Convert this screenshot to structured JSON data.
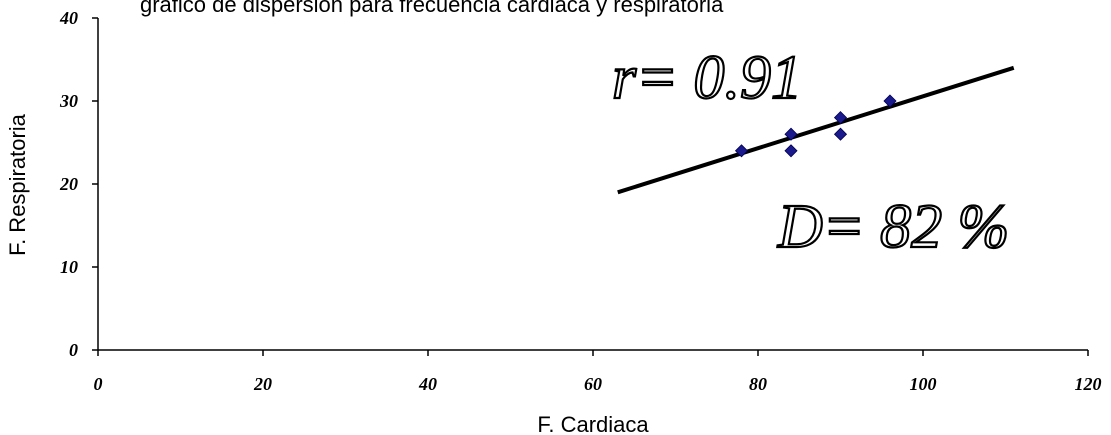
{
  "chart_data": {
    "type": "scatter",
    "title": "grafico de dispersion para frecuencia cardiaca y respiratoria",
    "xlabel": "F. Cardiaca",
    "ylabel": "F. Respiratoria",
    "xlim": [
      0,
      120
    ],
    "ylim": [
      0,
      40
    ],
    "xticks": [
      "0",
      "20",
      "40",
      "60",
      "80",
      "100",
      "120"
    ],
    "yticks": [
      "0",
      "10",
      "20",
      "30",
      "40"
    ],
    "points": [
      {
        "x": 78,
        "y": 24
      },
      {
        "x": 84,
        "y": 24
      },
      {
        "x": 84,
        "y": 26
      },
      {
        "x": 90,
        "y": 26
      },
      {
        "x": 90,
        "y": 28
      },
      {
        "x": 96,
        "y": 30
      }
    ],
    "trendline": {
      "x": [
        63,
        111
      ],
      "y": [
        19,
        34
      ]
    },
    "annotations": [
      "r= 0.91",
      "D= 82 %"
    ],
    "grid": false,
    "legend": "none"
  },
  "colors": {
    "marker": "#1a1a8c",
    "line": "#000000",
    "axis": "#000000"
  }
}
